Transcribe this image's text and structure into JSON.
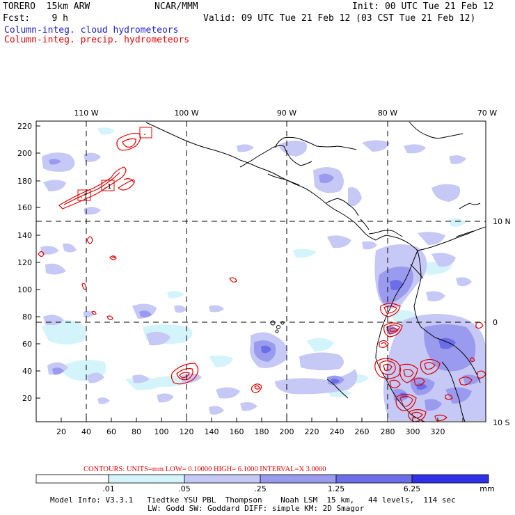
{
  "header": {
    "model": "TORERO  15km ARW",
    "center": "NCAR/MMM",
    "init": "Init: 00 UTC Tue 21 Feb 12",
    "fcst": "Fcst:    9 h",
    "valid": "Valid: 09 UTC Tue 21 Feb 12 (03 CST Tue 21 Feb 12)",
    "field_cloud": "Column-integ. cloud hydrometeors",
    "field_precip": "Column-integ. precip. hydrometeors"
  },
  "colors": {
    "cloud_text": "#2020c8",
    "precip": "#e00000",
    "shade_1": "#d4f4fb",
    "shade_2": "#c6c8f5",
    "shade_3": "#9a9bee",
    "shade_4": "#6c6ee8",
    "shade_5": "#3030e8"
  },
  "map": {
    "lon_labels": [
      "110 W",
      "100 W",
      "90 W",
      "80 W",
      "70 W"
    ],
    "lat_labels": [
      "10 N",
      "0",
      "10 S"
    ],
    "x_ticks": [
      "20",
      "40",
      "60",
      "80",
      "100",
      "120",
      "140",
      "160",
      "180",
      "200",
      "220",
      "240",
      "260",
      "280",
      "300",
      "320"
    ],
    "y_ticks": [
      "220",
      "200",
      "180",
      "160",
      "140",
      "120",
      "100",
      "80",
      "60",
      "40",
      "20"
    ],
    "box_labels": [
      ".1",
      ".1",
      "."
    ]
  },
  "contour_info": {
    "text": "CONTOURS:  UNITS=mm  LOW= 0.10000      HIGH=  6.1000      INTERVAL=X  3.0000"
  },
  "colorbar": {
    "labels": [
      ".01",
      ".05",
      ".25",
      "1.25",
      "6.25"
    ],
    "units": "mm"
  },
  "footer": {
    "line1": "Model Info: V3.3.1   Tiedtke YSU PBL  Thompson    Noah LSM  15 km,   44 levels,  114 sec",
    "line2": "LW: Godd SW: Goddard DIFF: simple KM: 2D Smagor"
  }
}
